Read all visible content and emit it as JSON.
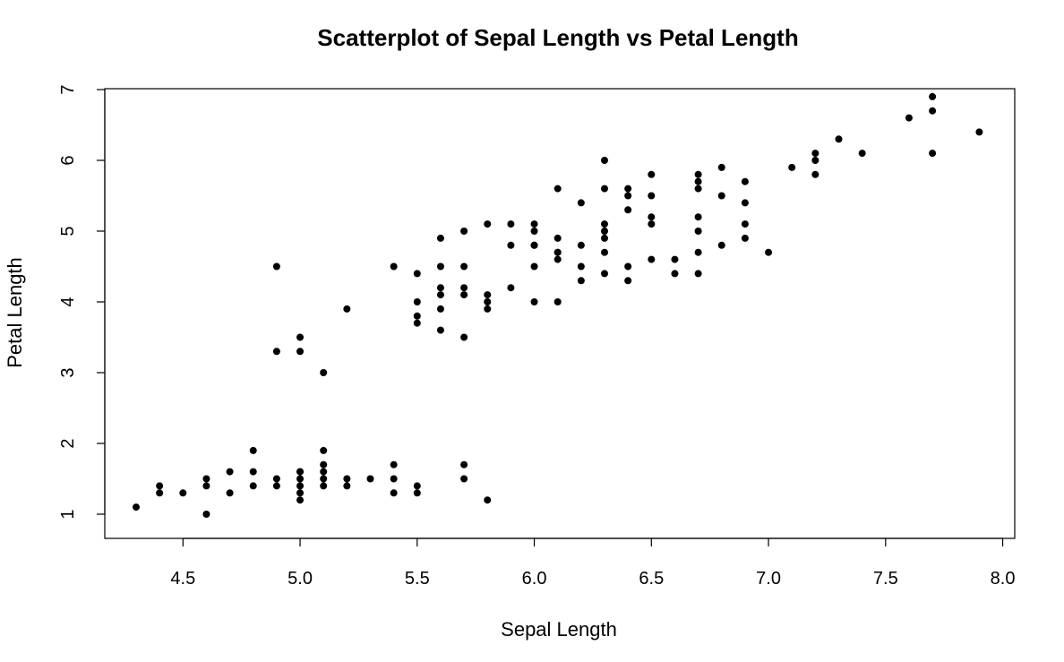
{
  "chart_data": {
    "type": "scatter",
    "title": "Scatterplot of Sepal Length vs Petal Length",
    "xlabel": "Sepal Length",
    "ylabel": "Petal Length",
    "xlim": [
      4.3,
      7.9
    ],
    "ylim": [
      1.0,
      6.9
    ],
    "xticks": [
      "4.5",
      "5.0",
      "5.5",
      "6.0",
      "6.5",
      "7.0",
      "7.5",
      "8.0"
    ],
    "yticks": [
      "1",
      "2",
      "3",
      "4",
      "5",
      "6",
      "7"
    ],
    "grid": false,
    "point_color": "#000000",
    "x": [
      4.3,
      4.4,
      4.4,
      4.5,
      4.6,
      4.6,
      4.6,
      4.7,
      4.7,
      4.8,
      4.8,
      4.8,
      4.9,
      4.9,
      4.9,
      4.9,
      5.0,
      5.0,
      5.0,
      5.0,
      5.0,
      5.0,
      5.0,
      5.0,
      5.1,
      5.1,
      5.1,
      5.1,
      5.1,
      5.1,
      5.2,
      5.2,
      5.2,
      5.3,
      5.4,
      5.4,
      5.4,
      5.4,
      5.5,
      5.5,
      5.5,
      5.5,
      5.5,
      5.5,
      5.6,
      5.6,
      5.6,
      5.6,
      5.6,
      5.6,
      5.7,
      5.7,
      5.7,
      5.7,
      5.7,
      5.7,
      5.7,
      5.8,
      5.8,
      5.8,
      5.8,
      5.8,
      5.9,
      5.9,
      5.9,
      6.0,
      6.0,
      6.0,
      6.0,
      6.0,
      6.0,
      6.1,
      6.1,
      6.1,
      6.1,
      6.1,
      6.1,
      6.2,
      6.2,
      6.2,
      6.2,
      6.3,
      6.3,
      6.3,
      6.3,
      6.3,
      6.3,
      6.3,
      6.4,
      6.4,
      6.4,
      6.4,
      6.4,
      6.5,
      6.5,
      6.5,
      6.5,
      6.5,
      6.6,
      6.6,
      6.7,
      6.7,
      6.7,
      6.7,
      6.7,
      6.7,
      6.7,
      6.8,
      6.8,
      6.8,
      6.9,
      6.9,
      6.9,
      6.9,
      7.0,
      7.1,
      7.2,
      7.2,
      7.2,
      7.3,
      7.4,
      7.6,
      7.7,
      7.7,
      7.7,
      7.9
    ],
    "y": [
      1.1,
      1.3,
      1.4,
      1.3,
      1.0,
      1.4,
      1.5,
      1.3,
      1.6,
      1.4,
      1.6,
      1.9,
      1.4,
      1.5,
      3.3,
      4.5,
      1.2,
      1.3,
      1.4,
      1.5,
      1.6,
      3.3,
      3.5,
      1.6,
      1.4,
      1.5,
      1.6,
      1.7,
      1.9,
      3.0,
      1.4,
      1.5,
      3.9,
      1.5,
      1.3,
      1.5,
      1.7,
      4.5,
      1.3,
      1.4,
      3.7,
      3.8,
      4.0,
      4.4,
      3.6,
      3.9,
      4.1,
      4.2,
      4.5,
      4.9,
      1.5,
      1.7,
      3.5,
      4.1,
      4.2,
      4.5,
      5.0,
      1.2,
      3.9,
      4.0,
      4.1,
      5.1,
      4.2,
      4.8,
      5.1,
      4.0,
      4.5,
      4.8,
      5.0,
      5.1,
      4.8,
      4.0,
      4.6,
      4.7,
      4.9,
      5.6,
      4.7,
      4.3,
      4.5,
      4.8,
      5.4,
      4.4,
      4.7,
      4.9,
      5.0,
      5.1,
      5.6,
      6.0,
      4.3,
      4.5,
      5.3,
      5.5,
      5.6,
      4.6,
      5.1,
      5.2,
      5.5,
      5.8,
      4.4,
      4.6,
      4.4,
      4.7,
      5.0,
      5.2,
      5.6,
      5.7,
      5.8,
      4.8,
      5.5,
      5.9,
      4.9,
      5.1,
      5.4,
      5.7,
      4.7,
      5.9,
      5.8,
      6.0,
      6.1,
      6.3,
      6.1,
      6.6,
      6.1,
      6.7,
      6.9,
      6.4
    ]
  }
}
